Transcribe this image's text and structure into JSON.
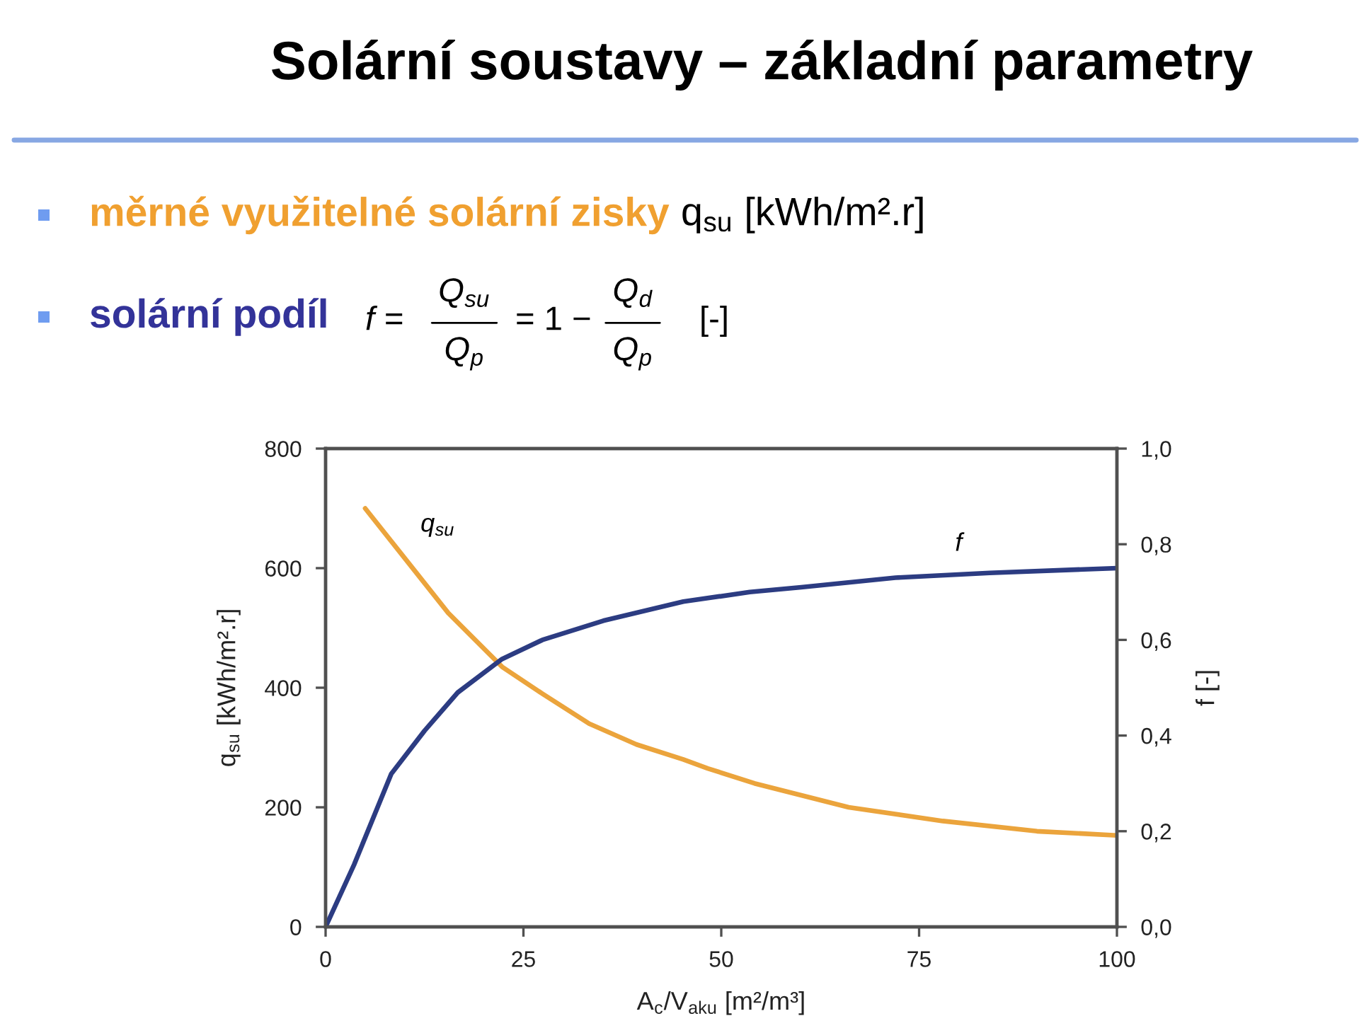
{
  "chart_data": {
    "type": "line",
    "title": "Solární soustavy – základní parametry",
    "annotations": [
      "měrné využitelné solární zisky",
      "q$_{su}$ [kWh/m².r]",
      "solární podíl",
      "f =",
      "Q$_{su}$",
      "Q$_{p}$",
      "= 1 −",
      "Q$_{d}$",
      "Q$_{p}$",
      "[-]"
    ],
    "xlabel": "A$_{c}$/V$_{aku}$ [m²/m³]",
    "ylabel": "q$_{su}$ [kWh/m².r]",
    "y2label": "f [-]",
    "xlim": [
      0,
      100
    ],
    "xticks": [
      0,
      25,
      50,
      75,
      100
    ],
    "ylim": [
      0,
      800
    ],
    "yticks": [
      0,
      200,
      400,
      600,
      800
    ],
    "y2lim": [
      0,
      1
    ],
    "y2ticks": [
      {
        "value": 0,
        "label": "0,0"
      },
      {
        "value": 0.2,
        "label": "0,2"
      },
      {
        "value": 0.4,
        "label": "0,4"
      },
      {
        "value": 0.6,
        "label": "0,6"
      },
      {
        "value": 0.8,
        "label": "0,8"
      },
      {
        "value": 1,
        "label": "1,0"
      }
    ],
    "series": [
      {
        "name": "q$_{su}$",
        "color": "#eba43c",
        "x": [
          5,
          9.5,
          15.5,
          22.3,
          27.4,
          33.3,
          39.3,
          45.2,
          48.3,
          54.2,
          66.1,
          78,
          89.9,
          100
        ],
        "values": [
          700,
          625,
          525,
          435,
          390,
          340,
          305,
          280,
          265,
          240,
          200,
          177,
          160,
          153
        ]
      },
      {
        "name": "f",
        "color": "#2c3c82",
        "axis": "y2",
        "x": [
          0,
          3.6,
          8.3,
          12.5,
          16.7,
          22.3,
          27.4,
          35.1,
          45.2,
          53.6,
          60.1,
          72,
          83.9,
          100
        ],
        "values": [
          0,
          0.13,
          0.32,
          0.41,
          0.49,
          0.56,
          0.6,
          0.64,
          0.68,
          0.7,
          0.71,
          0.73,
          0.74,
          0.75
        ]
      }
    ]
  }
}
